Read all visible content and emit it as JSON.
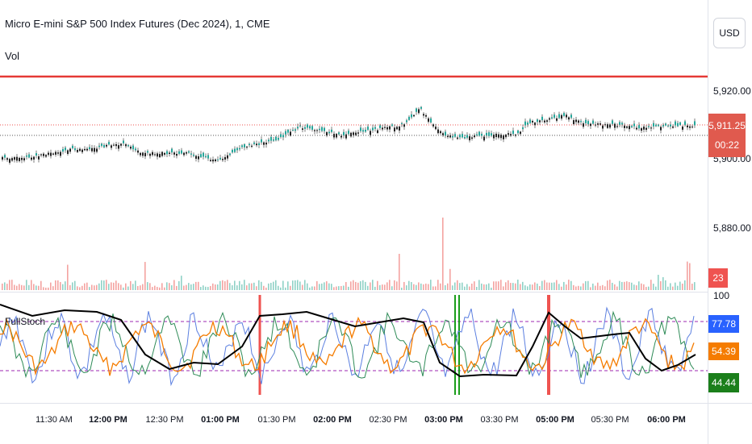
{
  "header": {
    "title": "Micro E-mini S&P 500 Index Futures (Dec 2024), 1, CME",
    "sub_indicator": "Vol",
    "lower_pane_label": "FullStoch"
  },
  "price_scale": {
    "currency": "USD",
    "labels": [
      "5,920.00",
      "5,900.00",
      "5,880.00"
    ],
    "last_price": "5,911.25",
    "countdown": "00:22",
    "volume_value": "23"
  },
  "stoch_scale": {
    "labels": [
      "100",
      "77.78",
      "54.39",
      "44.44"
    ],
    "colors": {
      "blue": "#2962ff",
      "orange": "#f57c00",
      "green": "#1b7f1b",
      "red": "#ef5350",
      "black": "#000000",
      "purple": "#9c27b0"
    }
  },
  "time_axis": {
    "ticks": [
      {
        "label": "11:30 AM",
        "bold": false
      },
      {
        "label": "12:00 PM",
        "bold": true
      },
      {
        "label": "12:30 PM",
        "bold": false
      },
      {
        "label": "01:00 PM",
        "bold": true
      },
      {
        "label": "01:30 PM",
        "bold": false
      },
      {
        "label": "02:00 PM",
        "bold": true
      },
      {
        "label": "02:30 PM",
        "bold": false
      },
      {
        "label": "03:00 PM",
        "bold": true
      },
      {
        "label": "03:30 PM",
        "bold": false
      },
      {
        "label": "05:00 PM",
        "bold": true
      },
      {
        "label": "05:30 PM",
        "bold": false
      },
      {
        "label": "06:00 PM",
        "bold": true
      }
    ]
  },
  "colors": {
    "resistance_line": "#e53935",
    "up_candle": "#26a69a",
    "down_candle": "#ef5350",
    "price_tag": "#e05a4e"
  }
}
